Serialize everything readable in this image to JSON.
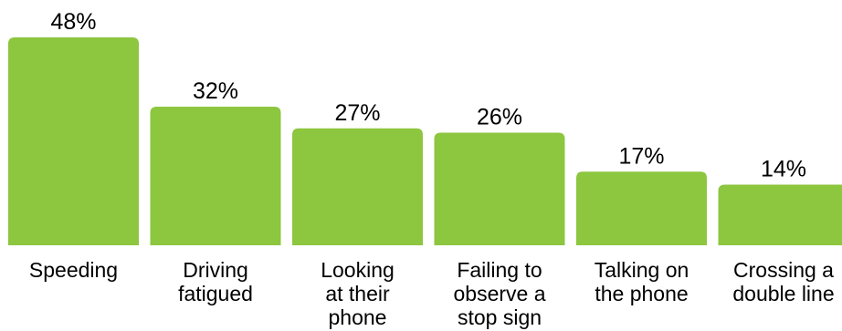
{
  "chart_data": {
    "type": "bar",
    "title": "",
    "xlabel": "",
    "ylabel": "",
    "ylim": [
      0,
      48
    ],
    "grid": false,
    "bar_color": "#8dc63f",
    "categories": [
      "Speeding",
      "Driving fatigued",
      "Looking at their phone",
      "Failing to observe a stop sign",
      "Talking on the phone",
      "Crossing a double line"
    ],
    "category_lines": [
      [
        "Speeding"
      ],
      [
        "Driving",
        "fatigued"
      ],
      [
        "Looking",
        "at their",
        "phone"
      ],
      [
        "Failing to",
        "observe a",
        "stop sign"
      ],
      [
        "Talking on",
        "the phone"
      ],
      [
        "Crossing a",
        "double line"
      ]
    ],
    "values": [
      48,
      32,
      27,
      26,
      17,
      14
    ],
    "value_labels": [
      "48%",
      "32%",
      "27%",
      "26%",
      "17%",
      "14%"
    ]
  }
}
